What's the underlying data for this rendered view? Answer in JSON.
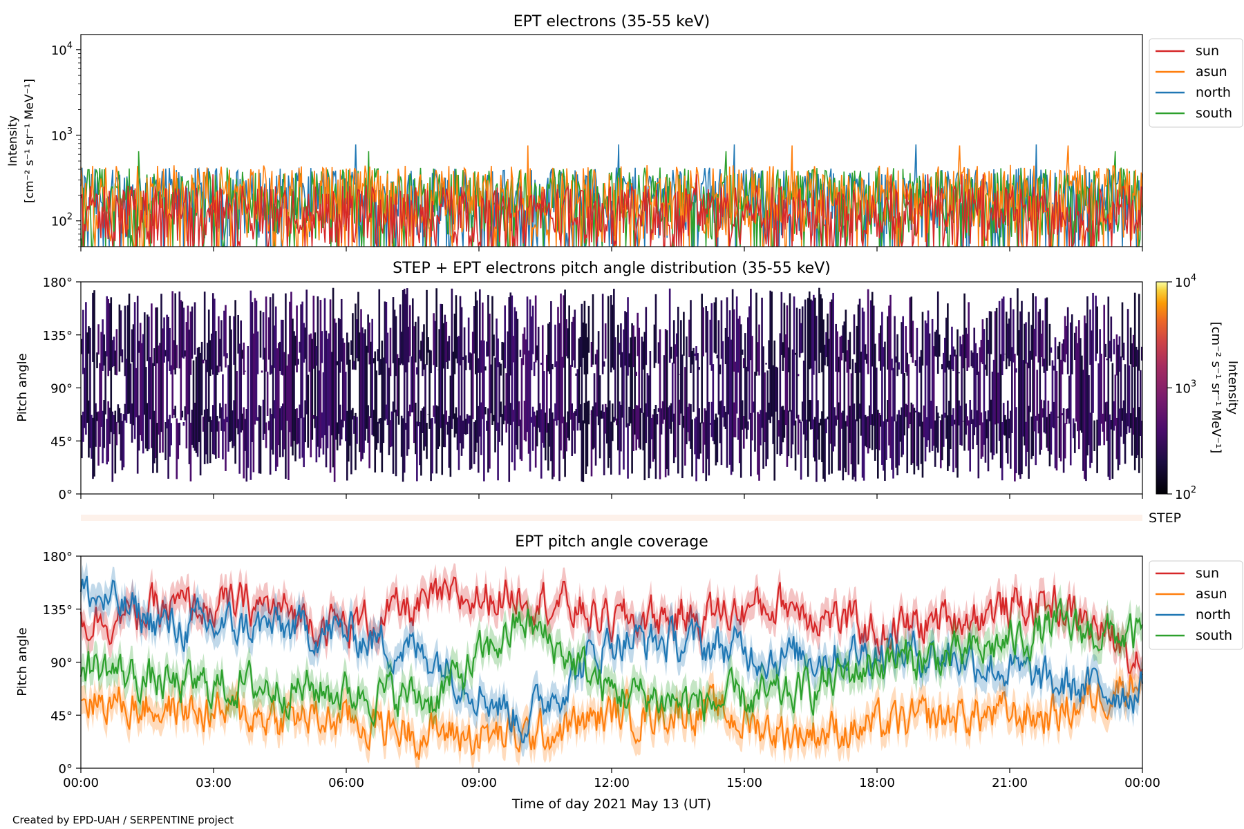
{
  "chart_data": [
    {
      "type": "line",
      "title": "EPT electrons (35-55 keV)",
      "ylabel": "Intensity",
      "yunit": "[cm⁻² s⁻¹ sr⁻¹ MeV⁻¹]",
      "yscale": "log",
      "ylim": [
        50,
        15000
      ],
      "yticks": [
        {
          "label": "10",
          "exp": "2"
        },
        {
          "label": "10",
          "exp": "3"
        },
        {
          "label": "10",
          "exp": "4"
        }
      ],
      "xlim_hours": [
        0,
        24
      ],
      "legend_position": "right-outside-top",
      "series": [
        {
          "name": "north",
          "color": "#1f77b4",
          "typical_range": [
            60,
            420
          ],
          "peak": 780
        },
        {
          "name": "south",
          "color": "#2ca02c",
          "typical_range": [
            60,
            420
          ],
          "peak": 650
        },
        {
          "name": "asun",
          "color": "#ff7f0e",
          "typical_range": [
            55,
            450
          ],
          "peak": 760
        },
        {
          "name": "sun",
          "color": "#d62728",
          "typical_range": [
            50,
            260
          ],
          "peak": 350
        }
      ],
      "legend_order": [
        "sun",
        "asun",
        "north",
        "south"
      ]
    },
    {
      "type": "heatmap",
      "title": "STEP + EPT electrons pitch angle distribution (35-55 keV)",
      "ylabel": "Pitch angle",
      "yticks": [
        "0°",
        "45°",
        "90°",
        "135°",
        "180°"
      ],
      "ylim": [
        0,
        180
      ],
      "colorbar": {
        "label": "Intensity",
        "unit": "[cm⁻² s⁻¹ sr⁻¹ MeV⁻¹]",
        "scale": "log",
        "range": [
          100,
          10000
        ],
        "ticks": [
          {
            "label": "10",
            "exp": "2"
          },
          {
            "label": "10",
            "exp": "3"
          },
          {
            "label": "10",
            "exp": "4"
          }
        ],
        "colormap": "inferno"
      },
      "grid": false
    },
    {
      "type": "area",
      "label": "STEP",
      "note": "empty STEP strip"
    },
    {
      "type": "line",
      "title": "EPT pitch angle coverage",
      "ylabel": "Pitch angle",
      "yticks": [
        "0°",
        "45°",
        "90°",
        "135°",
        "180°"
      ],
      "ylim": [
        0,
        180
      ],
      "xlabel": "Time of day 2021 May 13 (UT)",
      "xticks": [
        "00:00",
        "03:00",
        "06:00",
        "09:00",
        "12:00",
        "15:00",
        "18:00",
        "21:00",
        "00:00"
      ],
      "xlim_hours": [
        0,
        24
      ],
      "legend_position": "right-outside-top",
      "series": [
        {
          "name": "sun",
          "color": "#d62728",
          "hours": [
            0,
            2,
            4,
            6,
            8,
            10,
            12,
            14,
            16,
            18,
            20,
            22,
            24
          ],
          "values": [
            125,
            135,
            138,
            120,
            140,
            150,
            125,
            130,
            140,
            115,
            130,
            140,
            95
          ]
        },
        {
          "name": "asun",
          "color": "#ff7f0e",
          "hours": [
            0,
            2,
            4,
            6,
            8,
            10,
            12,
            14,
            16,
            18,
            20,
            22,
            24
          ],
          "values": [
            60,
            50,
            45,
            40,
            30,
            25,
            45,
            50,
            30,
            35,
            45,
            45,
            80
          ]
        },
        {
          "name": "north",
          "color": "#1f77b4",
          "hours": [
            0,
            2,
            4,
            6,
            8,
            10,
            12,
            14,
            16,
            18,
            20,
            22,
            24
          ],
          "values": [
            150,
            120,
            120,
            115,
            95,
            40,
            110,
            105,
            95,
            100,
            95,
            70,
            65
          ]
        },
        {
          "name": "south",
          "color": "#2ca02c",
          "hours": [
            0,
            2,
            4,
            6,
            8,
            10,
            12,
            14,
            16,
            18,
            20,
            22,
            24
          ],
          "values": [
            90,
            70,
            70,
            65,
            60,
            125,
            65,
            55,
            60,
            90,
            95,
            120,
            110
          ]
        }
      ],
      "legend_order": [
        "sun",
        "asun",
        "north",
        "south"
      ]
    }
  ],
  "footer": "Created by EPD-UAH / SERPENTINE project"
}
